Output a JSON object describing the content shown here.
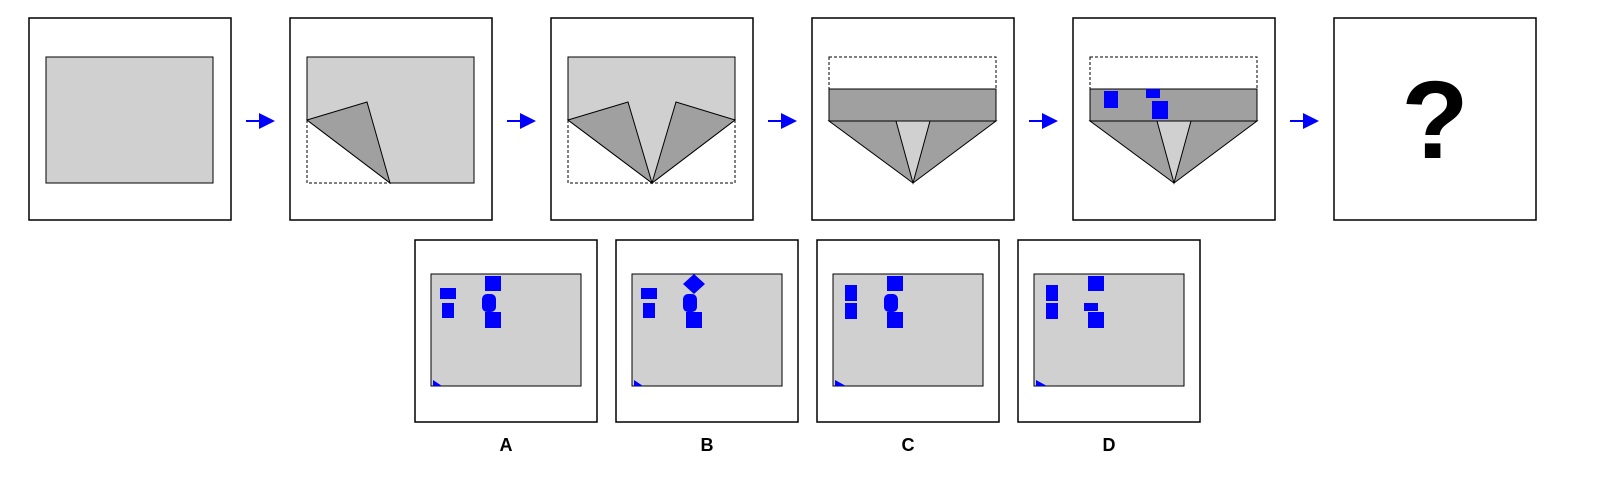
{
  "colors": {
    "panel_border": "#000000",
    "paper": "#d0d0d0",
    "fold": "#a0a0a0",
    "inner_tip": "#d0d0d0",
    "hole": "#0000ff",
    "arrow": "#0000ff"
  },
  "question_mark": "?",
  "options": [
    {
      "label": "A"
    },
    {
      "label": "B"
    },
    {
      "label": "C"
    },
    {
      "label": "D"
    }
  ]
}
